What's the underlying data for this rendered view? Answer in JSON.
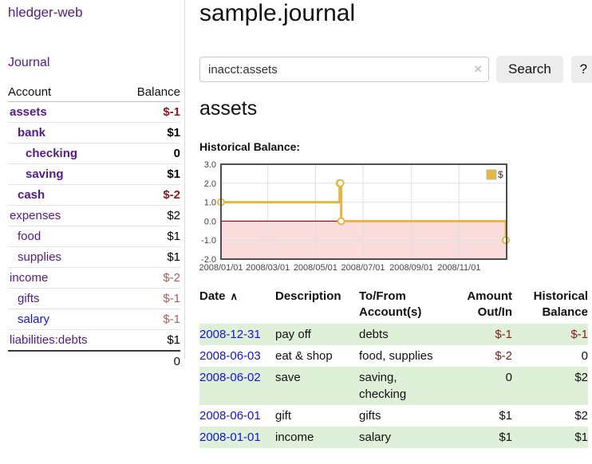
{
  "app": {
    "title": "hledger-web"
  },
  "sidebar": {
    "journal_link": "Journal",
    "accounts_table": {
      "col_account": "Account",
      "col_balance": "Balance",
      "rows": [
        {
          "name": "assets",
          "indent": 0,
          "balance": "$-1",
          "negative": true,
          "selected": true
        },
        {
          "name": "bank",
          "indent": 1,
          "balance": "$1",
          "negative": false,
          "selected": true
        },
        {
          "name": "checking",
          "indent": 2,
          "balance": "0",
          "negative": false,
          "selected": true
        },
        {
          "name": "saving",
          "indent": 2,
          "balance": "$1",
          "negative": false,
          "selected": true
        },
        {
          "name": "cash",
          "indent": 1,
          "balance": "$-2",
          "negative": true,
          "selected": true
        },
        {
          "name": "expenses",
          "indent": 0,
          "balance": "$2",
          "negative": false
        },
        {
          "name": "food",
          "indent": 1,
          "balance": "$1",
          "negative": false
        },
        {
          "name": "supplies",
          "indent": 1,
          "balance": "$1",
          "negative": false
        },
        {
          "name": "income",
          "indent": 0,
          "balance": "$-2",
          "negative": true
        },
        {
          "name": "gifts",
          "indent": 1,
          "balance": "$-1",
          "negative": true
        },
        {
          "name": "salary",
          "indent": 1,
          "balance": "$-1",
          "negative": true,
          "visited": false
        },
        {
          "name": "liabilities:debts",
          "indent": 0,
          "balance": "$1",
          "negative": false
        }
      ],
      "total": "0"
    }
  },
  "main": {
    "title": "sample.journal",
    "search": {
      "value": "inacct:assets",
      "clear_icon": "×",
      "button": "Search",
      "help_button": "?"
    },
    "account_heading": "assets",
    "chart_label": "Historical Balance:"
  },
  "chart_data": {
    "type": "line",
    "step": true,
    "title": "Historical Balance of assets",
    "series": [
      {
        "name": "$",
        "color": "#e3b742",
        "points": [
          [
            "2008-01-01",
            1
          ],
          [
            "2008-06-01",
            2
          ],
          [
            "2008-06-02",
            2
          ],
          [
            "2008-06-03",
            0
          ],
          [
            "2008-12-31",
            -1
          ]
        ]
      }
    ],
    "x_tick_labels": [
      "2008/01/01",
      "2008/03/01",
      "2008/05/01",
      "2008/07/01",
      "2008/09/01",
      "2008/11/01"
    ],
    "y_ticks": [
      3.0,
      2.0,
      1.0,
      0.0,
      -1.0,
      -2.0
    ],
    "ylim": [
      -2,
      3
    ],
    "grid": true,
    "negative_region_color": "#fbdcdc",
    "zero_line_color": "#9e0e0e",
    "legend": {
      "label": "$",
      "position": "top-right"
    }
  },
  "register_table": {
    "headers": {
      "date": "Date",
      "sort_icon": "∧",
      "description": "Description",
      "accounts": "To/From\nAccount(s)",
      "amount": "Amount\nOut/In",
      "balance": "Historical\nBalance"
    },
    "rows": [
      {
        "date": "2008-12-31",
        "description": "pay off",
        "accounts": "debts",
        "amount": "$-1",
        "balance": "$-1"
      },
      {
        "date": "2008-06-03",
        "description": "eat & shop",
        "accounts": "food, supplies",
        "amount": "$-2",
        "balance": "0"
      },
      {
        "date": "2008-06-02",
        "description": "save",
        "accounts": "saving,\nchecking",
        "amount": "0",
        "balance": "$2"
      },
      {
        "date": "2008-06-01",
        "description": "gift",
        "accounts": "gifts",
        "amount": "$1",
        "balance": "$2"
      },
      {
        "date": "2008-01-01",
        "description": "income",
        "accounts": "salary",
        "amount": "$1",
        "balance": "$1"
      }
    ]
  }
}
